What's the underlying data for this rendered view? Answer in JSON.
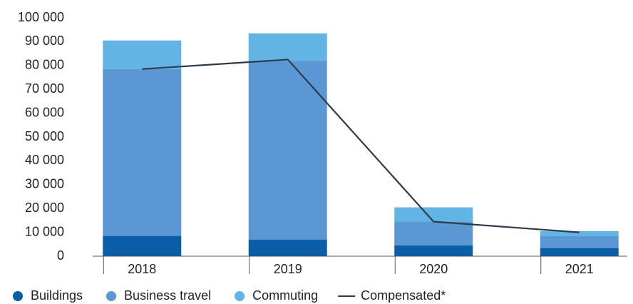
{
  "chart_data": {
    "type": "bar",
    "categories": [
      "2018",
      "2019",
      "2020",
      "2021"
    ],
    "series": [
      {
        "name": "Buildings",
        "color": "#0a5ea8",
        "values": [
          8500,
          7000,
          4500,
          3500
        ]
      },
      {
        "name": "Business travel",
        "color": "#5b97d2",
        "values": [
          70000,
          75000,
          10000,
          5000
        ]
      },
      {
        "name": "Commuting",
        "color": "#62b4e4",
        "values": [
          12000,
          11500,
          6000,
          2000
        ]
      },
      {
        "name": "Compensated*",
        "type": "line",
        "color": "#2d3a4a",
        "values": [
          78500,
          82500,
          14500,
          10000
        ]
      }
    ],
    "ylim": [
      0,
      100000
    ],
    "yticks": [
      0,
      {
        "value": 10000,
        "label": "10 000"
      },
      {
        "value": 20000,
        "label": "20 000"
      },
      {
        "value": 30000,
        "label": "30 000"
      },
      {
        "value": 40000,
        "label": "40 000"
      },
      {
        "value": 50000,
        "label": "50 000"
      },
      {
        "value": 60000,
        "label": "60 000"
      },
      {
        "value": 70000,
        "label": "70 000"
      },
      {
        "value": 80000,
        "label": "80 000"
      },
      {
        "value": 90000,
        "label": "90 000"
      },
      {
        "value": 100000,
        "label": "100 000"
      }
    ],
    "legend": "bottom"
  }
}
